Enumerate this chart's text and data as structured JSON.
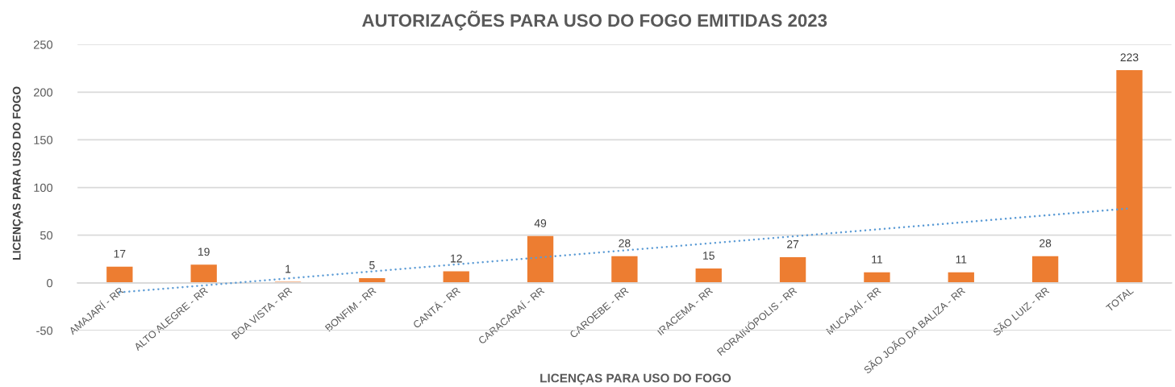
{
  "chart_data": {
    "type": "bar",
    "title": "AUTORIZAÇÕES PARA USO DO FOGO EMITIDAS 2023",
    "xlabel": "LICENÇAS PARA USO DO FOGO",
    "ylabel": "LICENÇAS PARA USO DO FOGO",
    "categories": [
      "AMAJARÍ - RR",
      "ALTO ALEGRE - RR",
      "BOA VISTA - RR",
      "BONFIM - RR",
      "CANTÁ - RR",
      "CARACARAÍ - RR",
      "CAROEBE - RR",
      "IRACEMA - RR",
      "RORAINÓPOLIS - RR",
      "MUCAJAÍ - RR",
      "SÃO JOÃO DA BALIZA - RR",
      "SÃO LUIZ - RR",
      "TOTAL"
    ],
    "series": [
      {
        "color": "#ed7d31",
        "values": [
          17,
          19,
          1,
          5,
          12,
          49,
          28,
          15,
          27,
          11,
          11,
          28,
          223
        ],
        "value_labels": [
          "17",
          "19",
          "1",
          "5",
          "12",
          "49",
          "28",
          "15",
          "27",
          "11",
          "11",
          "28",
          "223"
        ]
      },
      {
        "type": "line",
        "color": "#5b9bd5",
        "line_style": "dotted",
        "x": [
          "AMAJARÍ - RR",
          "TOTAL"
        ],
        "values": [
          -10,
          78
        ]
      }
    ],
    "ylim": [
      -50,
      250
    ],
    "yticks": [
      -50,
      0,
      50,
      100,
      150,
      200,
      250
    ],
    "grid": "y"
  }
}
